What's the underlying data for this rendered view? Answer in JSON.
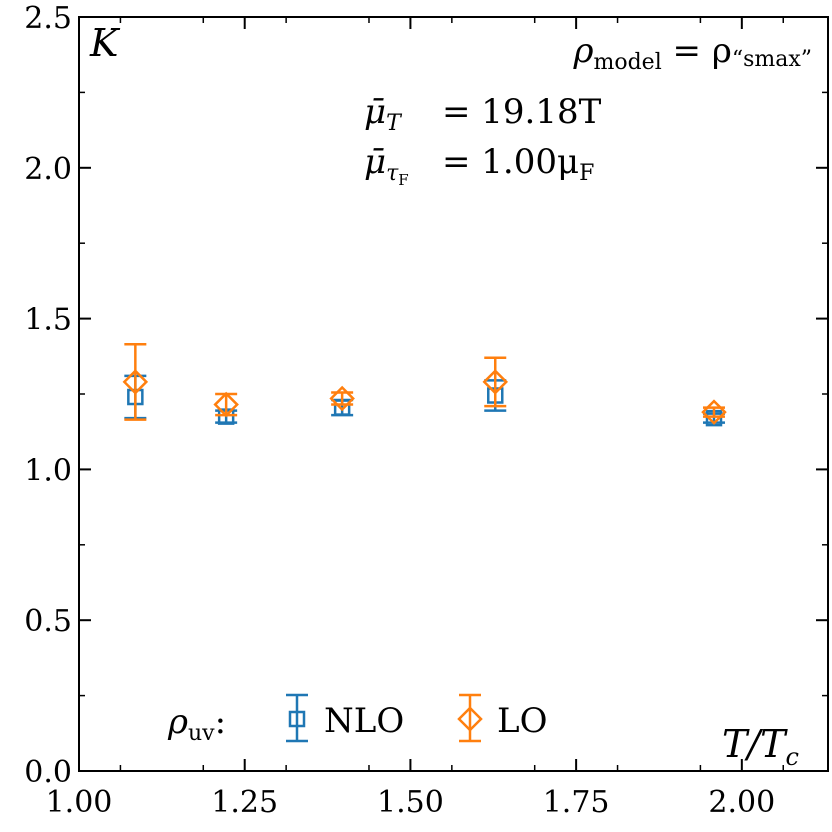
{
  "chart_data": {
    "type": "scatter",
    "corner_label": "K",
    "xlabel": "T/T",
    "xlabel_sub": "c",
    "xlim": [
      1.0,
      2.13
    ],
    "ylim": [
      0.0,
      2.5
    ],
    "x_ticks": [
      1.0,
      1.25,
      1.5,
      1.75,
      2.0
    ],
    "x_tick_labels": [
      "1.00",
      "1.25",
      "1.50",
      "1.75",
      "2.00"
    ],
    "y_ticks": [
      0.0,
      0.5,
      1.0,
      1.5,
      2.0,
      2.5
    ],
    "y_tick_labels": [
      "0.0",
      "0.5",
      "1.0",
      "1.5",
      "2.0",
      "2.5"
    ],
    "annotations": {
      "model_lhs": "ρ",
      "model_lhs_sub": "model",
      "model_eq": " = ρ",
      "model_rhs_sub": "“smax”",
      "mu_t_symbol": "μ̄",
      "mu_t_sub": "T",
      "mu_t_value": "= 19.18T",
      "mu_tau_symbol": "μ̄",
      "mu_tau_sub": "τ",
      "mu_tau_subsub": "F",
      "mu_tau_value": "= 1.00μ",
      "mu_tau_value_sub": "F"
    },
    "legend": {
      "prefix": "ρ",
      "prefix_sub": "uv",
      "prefix_colon": ":",
      "placement": "bottom-center"
    },
    "series": [
      {
        "name": "NLO",
        "marker": "square",
        "color": "#1f77b4",
        "x": [
          1.085,
          1.222,
          1.397,
          1.628,
          1.958
        ],
        "y": [
          1.24,
          1.175,
          1.205,
          1.245,
          1.17
        ],
        "yerr": [
          0.07,
          0.02,
          0.025,
          0.05,
          0.015
        ]
      },
      {
        "name": "LO",
        "marker": "diamond",
        "color": "#ff7f0e",
        "x": [
          1.085,
          1.222,
          1.397,
          1.628,
          1.958
        ],
        "y": [
          1.29,
          1.215,
          1.235,
          1.29,
          1.19
        ],
        "yerr": [
          0.125,
          0.035,
          0.02,
          0.08,
          0.015
        ]
      }
    ]
  }
}
